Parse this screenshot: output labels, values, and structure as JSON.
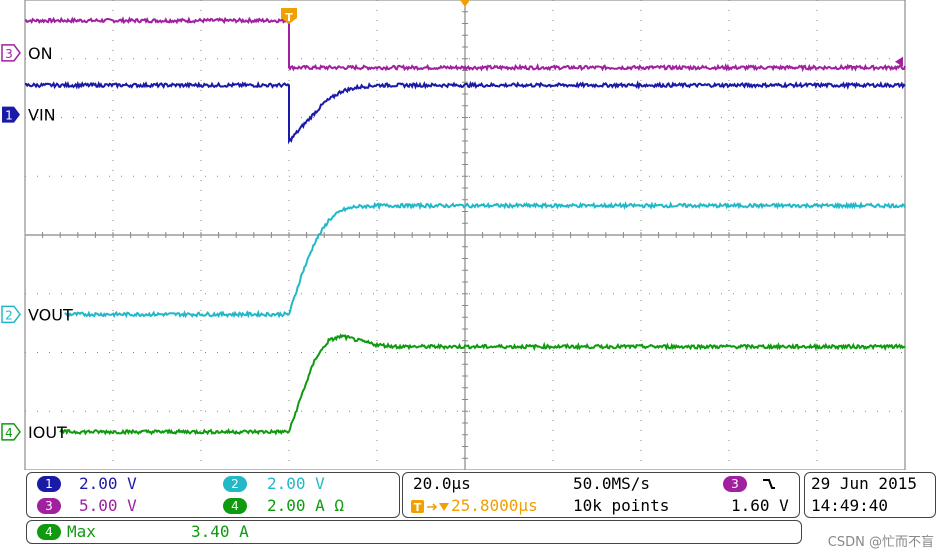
{
  "colors": {
    "ch1": "#1a1aa8",
    "ch2": "#22b8c8",
    "ch3": "#a020a0",
    "ch4": "#109a10",
    "trigger": "#f0a000",
    "grid": "#888888"
  },
  "trigger_marker": "T",
  "chart_data": {
    "type": "line",
    "grid": true,
    "xlim": [
      -80,
      120
    ],
    "ylim": [
      -4,
      4
    ],
    "x_unit": "µs",
    "series": [
      {
        "name": "ON",
        "channel": "3",
        "x": [
          -80,
          -20,
          -19.9,
          120
        ],
        "y": [
          3.65,
          3.65,
          2.85,
          2.85
        ]
      },
      {
        "name": "VIN",
        "channel": "1",
        "x": [
          -80,
          -20,
          -19.9,
          -17,
          -12,
          -8,
          -4,
          0,
          10,
          120
        ],
        "y": [
          2.55,
          2.55,
          1.6,
          1.85,
          2.25,
          2.45,
          2.52,
          2.55,
          2.55,
          2.55
        ]
      },
      {
        "name": "VOUT",
        "channel": "2",
        "x": [
          -80,
          -20,
          -17,
          -14,
          -11,
          -8,
          -5,
          0,
          10,
          120
        ],
        "y": [
          -1.35,
          -1.35,
          -0.65,
          -0.1,
          0.25,
          0.42,
          0.48,
          0.5,
          0.5,
          0.5
        ]
      },
      {
        "name": "IOUT",
        "channel": "4",
        "x": [
          -80,
          -20,
          -17,
          -14,
          -11,
          -8,
          -4,
          0,
          5,
          120
        ],
        "y": [
          -3.35,
          -3.35,
          -2.7,
          -2.1,
          -1.8,
          -1.72,
          -1.8,
          -1.87,
          -1.9,
          -1.9
        ]
      }
    ]
  },
  "channel_labels": [
    {
      "num": "3",
      "name": "ON"
    },
    {
      "num": "1",
      "name": "VIN"
    },
    {
      "num": "2",
      "name": "VOUT"
    },
    {
      "num": "4",
      "name": "IOUT"
    }
  ],
  "status": {
    "ch1_num": "1",
    "ch1_scale": "2.00 V",
    "ch2_num": "2",
    "ch2_scale": "2.00 V",
    "ch3_num": "3",
    "ch3_scale": "5.00 V",
    "ch4_num": "4",
    "ch4_scale": "2.00 A Ω",
    "timebase": "20.0µs",
    "sample_rate": "50.0MS/s",
    "record_length": "10k points",
    "trigger_position": "25.8000µs",
    "trigger_source": "3",
    "trigger_slope_icon": "falling-edge-icon",
    "trigger_level": "1.60 V",
    "date": "29 Jun 2015",
    "time": "14:49:40",
    "measure_channel": "4",
    "measure_label": "Max",
    "measure_value": "3.40 A"
  },
  "watermark": "CSDN @忙而不盲"
}
